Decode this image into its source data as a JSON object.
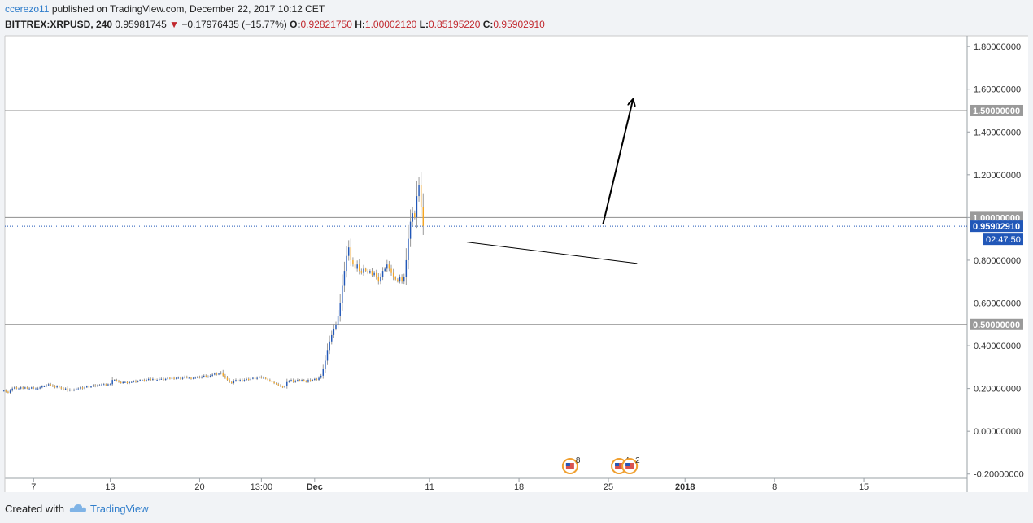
{
  "header": {
    "user": "ccerezo11",
    "published": "published on TradingView.com, December 22, 2017 10:12 CET",
    "symbol": "BITTREX:XRPUSD, 240",
    "last": "0.95981745",
    "change": "−0.17976435 (−15.77%)",
    "o_label": "O:",
    "o_value": "0.92821750",
    "h_label": "H:",
    "h_value": "1.00002120",
    "l_label": "L:",
    "l_value": "0.85195220",
    "c_label": "C:",
    "c_value": "0.95902910"
  },
  "footer": {
    "created_with": "Created with",
    "brand": "TradingView"
  },
  "colors": {
    "up": "#2157b8",
    "down": "#f5a623",
    "level_label_bg": "#9a9a9a",
    "price_label_bg": "#2157b8",
    "text_red": "#c1272d"
  },
  "chart_data": {
    "type": "candlestick",
    "y_ticks": [
      "1.80000000",
      "1.60000000",
      "1.40000000",
      "1.20000000",
      "1.00000000",
      "0.80000000",
      "0.60000000",
      "0.40000000",
      "0.20000000",
      "0.00000000",
      "-0.20000000"
    ],
    "y_tick_values": [
      1.8,
      1.6,
      1.4,
      1.2,
      1.0,
      0.8,
      0.6,
      0.4,
      0.2,
      0.0,
      -0.2
    ],
    "ylim": [
      -0.22,
      1.85
    ],
    "x_ticks": [
      {
        "label": "7",
        "bar": 14
      },
      {
        "label": "13",
        "bar": 50
      },
      {
        "label": "20",
        "bar": 92
      },
      {
        "label": "13:00",
        "bar": 121
      },
      {
        "label": "Dec",
        "bar": 146
      },
      {
        "label": "11",
        "bar": 200
      },
      {
        "label": "18",
        "bar": 242
      },
      {
        "label": "25",
        "bar": 284
      },
      {
        "label": "2018",
        "bar": 320
      },
      {
        "label": "8",
        "bar": 362
      },
      {
        "label": "15",
        "bar": 404
      }
    ],
    "bar_range": [
      0.5,
      452.5
    ],
    "horizontal_levels": [
      {
        "value": 1.5,
        "label": "1.50000000"
      },
      {
        "value": 1.0,
        "label": "1.00000000"
      },
      {
        "value": 0.5,
        "label": "0.50000000"
      }
    ],
    "current_price": {
      "value": 0.9590291,
      "label": "0.95902910",
      "countdown": "02:47:50"
    },
    "trendlines": [
      {
        "bars": [
          217.5,
          297.5
        ],
        "values": [
          0.885,
          0.785
        ],
        "arrow": false
      },
      {
        "bars": [
          281.5,
          295.5
        ],
        "values": [
          0.97,
          1.55
        ],
        "arrow": true
      }
    ],
    "event_markers": [
      {
        "bar": 266,
        "count": "8"
      },
      {
        "bar": 289,
        "count": "4"
      },
      {
        "bar": 294,
        "count": "2"
      }
    ],
    "series": [
      {
        "name": "XRPUSD, 240",
        "first_bar": 0,
        "closes": [
          0.19,
          0.185,
          0.18,
          0.19,
          0.2,
          0.205,
          0.2,
          0.2,
          0.205,
          0.2,
          0.205,
          0.2,
          0.2,
          0.205,
          0.2,
          0.2,
          0.2,
          0.205,
          0.21,
          0.21,
          0.215,
          0.22,
          0.215,
          0.21,
          0.205,
          0.21,
          0.205,
          0.2,
          0.195,
          0.2,
          0.19,
          0.195,
          0.19,
          0.195,
          0.2,
          0.2,
          0.205,
          0.2,
          0.205,
          0.21,
          0.205,
          0.21,
          0.215,
          0.21,
          0.215,
          0.215,
          0.22,
          0.22,
          0.215,
          0.22,
          0.22,
          0.24,
          0.24,
          0.235,
          0.23,
          0.225,
          0.23,
          0.23,
          0.225,
          0.23,
          0.23,
          0.235,
          0.23,
          0.235,
          0.24,
          0.24,
          0.235,
          0.24,
          0.245,
          0.24,
          0.245,
          0.24,
          0.24,
          0.245,
          0.245,
          0.24,
          0.245,
          0.25,
          0.245,
          0.25,
          0.245,
          0.25,
          0.25,
          0.245,
          0.25,
          0.255,
          0.25,
          0.25,
          0.245,
          0.25,
          0.25,
          0.255,
          0.25,
          0.255,
          0.26,
          0.255,
          0.255,
          0.26,
          0.265,
          0.27,
          0.265,
          0.27,
          0.275,
          0.26,
          0.25,
          0.24,
          0.23,
          0.225,
          0.235,
          0.24,
          0.235,
          0.24,
          0.235,
          0.24,
          0.245,
          0.24,
          0.245,
          0.25,
          0.245,
          0.25,
          0.255,
          0.25,
          0.25,
          0.245,
          0.24,
          0.235,
          0.23,
          0.225,
          0.22,
          0.215,
          0.21,
          0.205,
          0.21,
          0.23,
          0.235,
          0.24,
          0.23,
          0.235,
          0.24,
          0.235,
          0.24,
          0.235,
          0.23,
          0.24,
          0.235,
          0.24,
          0.245,
          0.24,
          0.25,
          0.26,
          0.29,
          0.33,
          0.38,
          0.42,
          0.45,
          0.48,
          0.5,
          0.54,
          0.6,
          0.68,
          0.75,
          0.82,
          0.86,
          0.8,
          0.78,
          0.76,
          0.78,
          0.75,
          0.74,
          0.76,
          0.75,
          0.74,
          0.75,
          0.73,
          0.74,
          0.72,
          0.7,
          0.72,
          0.75,
          0.76,
          0.78,
          0.76,
          0.74,
          0.72,
          0.71,
          0.7,
          0.72,
          0.7,
          0.72,
          0.8,
          0.9,
          0.98,
          1.02,
          1.0,
          1.1,
          1.15,
          1.05,
          0.96
        ]
      }
    ]
  }
}
